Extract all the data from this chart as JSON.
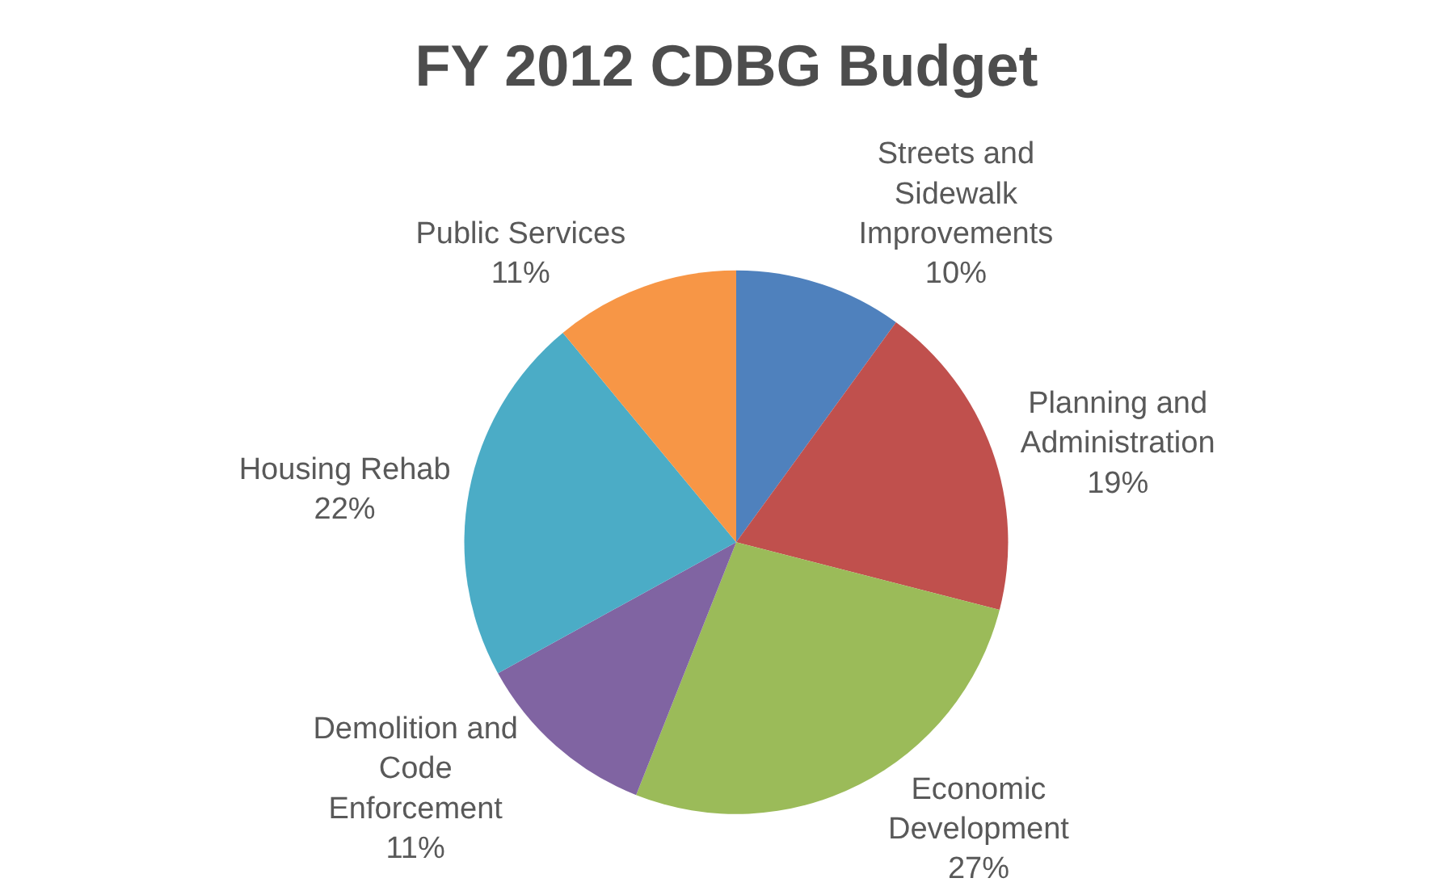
{
  "chart_data": {
    "type": "pie",
    "title": "FY 2012 CDBG Budget",
    "categories": [
      "Streets and Sidewalk Improvements",
      "Planning and Administration",
      "Economic Development",
      "Demolition and Code Enforcement",
      "Housing Rehab",
      "Public Services"
    ],
    "values": [
      10,
      19,
      27,
      11,
      22,
      11
    ],
    "value_labels": [
      "10%",
      "19%",
      "27%",
      "11%",
      "22%",
      "11%"
    ],
    "colors": [
      "#4f81bd",
      "#c0504d",
      "#9bbb59",
      "#8064a2",
      "#4bacc6",
      "#f79646"
    ],
    "legend": false
  }
}
